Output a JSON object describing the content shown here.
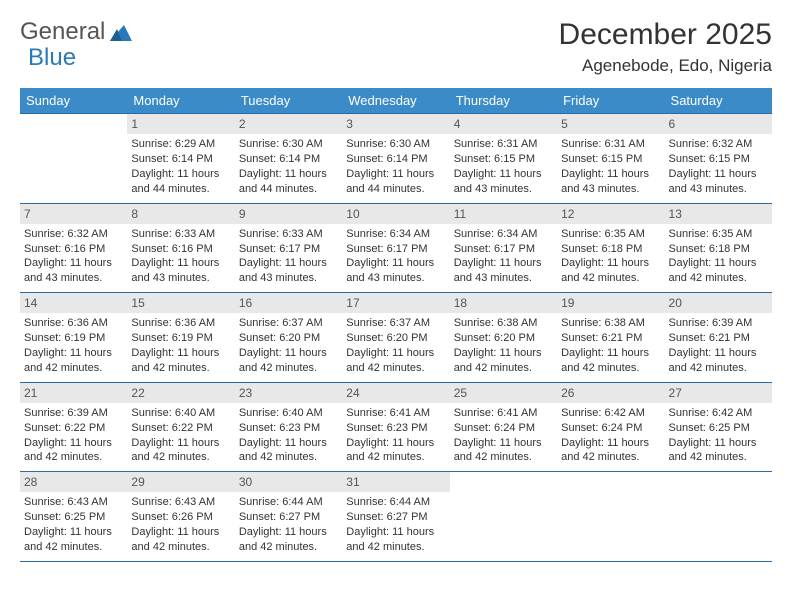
{
  "brand": {
    "part1": "General",
    "part2": "Blue"
  },
  "title": "December 2025",
  "location": "Agenebode, Edo, Nigeria",
  "colors": {
    "header_bg": "#3b8bc8",
    "header_text": "#ffffff",
    "row_border": "#2a6aa5",
    "daynum_bg": "#e8e8e8",
    "daynum_text": "#555555",
    "text": "#333333",
    "logo_blue": "#2a7ab8"
  },
  "day_headers": [
    "Sunday",
    "Monday",
    "Tuesday",
    "Wednesday",
    "Thursday",
    "Friday",
    "Saturday"
  ],
  "labels": {
    "sunrise": "Sunrise:",
    "sunset": "Sunset:",
    "daylight": "Daylight:"
  },
  "weeks": [
    [
      {
        "n": "",
        "empty": true
      },
      {
        "n": "1",
        "sunrise": "6:29 AM",
        "sunset": "6:14 PM",
        "daylight": "11 hours and 44 minutes."
      },
      {
        "n": "2",
        "sunrise": "6:30 AM",
        "sunset": "6:14 PM",
        "daylight": "11 hours and 44 minutes."
      },
      {
        "n": "3",
        "sunrise": "6:30 AM",
        "sunset": "6:14 PM",
        "daylight": "11 hours and 44 minutes."
      },
      {
        "n": "4",
        "sunrise": "6:31 AM",
        "sunset": "6:15 PM",
        "daylight": "11 hours and 43 minutes."
      },
      {
        "n": "5",
        "sunrise": "6:31 AM",
        "sunset": "6:15 PM",
        "daylight": "11 hours and 43 minutes."
      },
      {
        "n": "6",
        "sunrise": "6:32 AM",
        "sunset": "6:15 PM",
        "daylight": "11 hours and 43 minutes."
      }
    ],
    [
      {
        "n": "7",
        "sunrise": "6:32 AM",
        "sunset": "6:16 PM",
        "daylight": "11 hours and 43 minutes."
      },
      {
        "n": "8",
        "sunrise": "6:33 AM",
        "sunset": "6:16 PM",
        "daylight": "11 hours and 43 minutes."
      },
      {
        "n": "9",
        "sunrise": "6:33 AM",
        "sunset": "6:17 PM",
        "daylight": "11 hours and 43 minutes."
      },
      {
        "n": "10",
        "sunrise": "6:34 AM",
        "sunset": "6:17 PM",
        "daylight": "11 hours and 43 minutes."
      },
      {
        "n": "11",
        "sunrise": "6:34 AM",
        "sunset": "6:17 PM",
        "daylight": "11 hours and 43 minutes."
      },
      {
        "n": "12",
        "sunrise": "6:35 AM",
        "sunset": "6:18 PM",
        "daylight": "11 hours and 42 minutes."
      },
      {
        "n": "13",
        "sunrise": "6:35 AM",
        "sunset": "6:18 PM",
        "daylight": "11 hours and 42 minutes."
      }
    ],
    [
      {
        "n": "14",
        "sunrise": "6:36 AM",
        "sunset": "6:19 PM",
        "daylight": "11 hours and 42 minutes."
      },
      {
        "n": "15",
        "sunrise": "6:36 AM",
        "sunset": "6:19 PM",
        "daylight": "11 hours and 42 minutes."
      },
      {
        "n": "16",
        "sunrise": "6:37 AM",
        "sunset": "6:20 PM",
        "daylight": "11 hours and 42 minutes."
      },
      {
        "n": "17",
        "sunrise": "6:37 AM",
        "sunset": "6:20 PM",
        "daylight": "11 hours and 42 minutes."
      },
      {
        "n": "18",
        "sunrise": "6:38 AM",
        "sunset": "6:20 PM",
        "daylight": "11 hours and 42 minutes."
      },
      {
        "n": "19",
        "sunrise": "6:38 AM",
        "sunset": "6:21 PM",
        "daylight": "11 hours and 42 minutes."
      },
      {
        "n": "20",
        "sunrise": "6:39 AM",
        "sunset": "6:21 PM",
        "daylight": "11 hours and 42 minutes."
      }
    ],
    [
      {
        "n": "21",
        "sunrise": "6:39 AM",
        "sunset": "6:22 PM",
        "daylight": "11 hours and 42 minutes."
      },
      {
        "n": "22",
        "sunrise": "6:40 AM",
        "sunset": "6:22 PM",
        "daylight": "11 hours and 42 minutes."
      },
      {
        "n": "23",
        "sunrise": "6:40 AM",
        "sunset": "6:23 PM",
        "daylight": "11 hours and 42 minutes."
      },
      {
        "n": "24",
        "sunrise": "6:41 AM",
        "sunset": "6:23 PM",
        "daylight": "11 hours and 42 minutes."
      },
      {
        "n": "25",
        "sunrise": "6:41 AM",
        "sunset": "6:24 PM",
        "daylight": "11 hours and 42 minutes."
      },
      {
        "n": "26",
        "sunrise": "6:42 AM",
        "sunset": "6:24 PM",
        "daylight": "11 hours and 42 minutes."
      },
      {
        "n": "27",
        "sunrise": "6:42 AM",
        "sunset": "6:25 PM",
        "daylight": "11 hours and 42 minutes."
      }
    ],
    [
      {
        "n": "28",
        "sunrise": "6:43 AM",
        "sunset": "6:25 PM",
        "daylight": "11 hours and 42 minutes."
      },
      {
        "n": "29",
        "sunrise": "6:43 AM",
        "sunset": "6:26 PM",
        "daylight": "11 hours and 42 minutes."
      },
      {
        "n": "30",
        "sunrise": "6:44 AM",
        "sunset": "6:27 PM",
        "daylight": "11 hours and 42 minutes."
      },
      {
        "n": "31",
        "sunrise": "6:44 AM",
        "sunset": "6:27 PM",
        "daylight": "11 hours and 42 minutes."
      },
      {
        "n": "",
        "empty": true
      },
      {
        "n": "",
        "empty": true
      },
      {
        "n": "",
        "empty": true
      }
    ]
  ]
}
